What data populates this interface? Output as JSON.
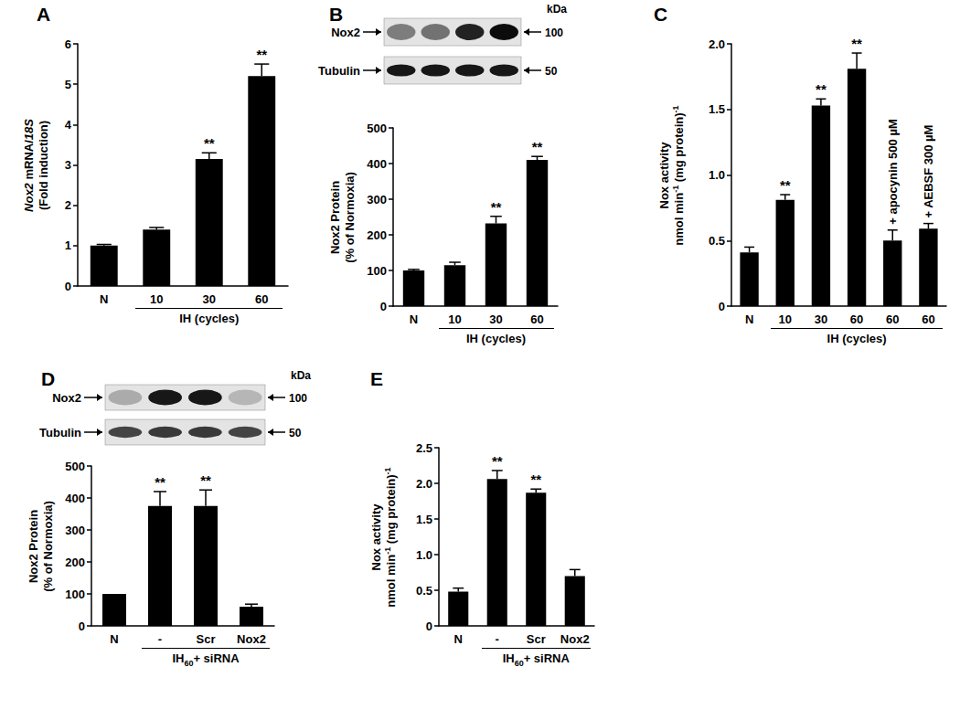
{
  "chart_data": [
    {
      "panel": "A",
      "type": "bar",
      "ylabel": [
        [
          {
            "text": "Nox2",
            "style": "italic"
          },
          {
            "text": " mRNA/"
          },
          {
            "text": "18S",
            "style": "italic"
          }
        ],
        [
          {
            "text": "(Fold induction)"
          }
        ]
      ],
      "categories": [
        "N",
        "10",
        "30",
        "60"
      ],
      "values": [
        1.0,
        1.4,
        3.15,
        5.2
      ],
      "error": [
        0.03,
        0.05,
        0.15,
        0.3
      ],
      "significance": [
        null,
        null,
        "**",
        "**"
      ],
      "x_group": {
        "label": [
          {
            "text": "IH (cycles)"
          }
        ],
        "from": 1,
        "to": 3
      },
      "color": "#000000",
      "ylim": [
        0,
        6
      ],
      "yticks": [
        0,
        1,
        2,
        3,
        4,
        5,
        6
      ],
      "grid": false
    },
    {
      "panel": "B",
      "type": "bar",
      "ylabel": [
        [
          {
            "text": "Nox2 Protein"
          }
        ],
        [
          {
            "text": "(% of Normoxia)"
          }
        ]
      ],
      "categories": [
        "N",
        "10",
        "30",
        "60"
      ],
      "values": [
        100,
        115,
        232,
        410
      ],
      "error": [
        3,
        8,
        20,
        10
      ],
      "significance": [
        null,
        null,
        "**",
        "**"
      ],
      "x_group": {
        "label": [
          {
            "text": "IH (cycles)"
          }
        ],
        "from": 1,
        "to": 3
      },
      "blot": {
        "unit": "kDa",
        "rows": [
          {
            "label": "Nox2",
            "mw": "100",
            "bands": [
              0.45,
              0.5,
              0.85,
              0.95
            ]
          },
          {
            "label": "Tubulin",
            "mw": "50",
            "bands": [
              0.9,
              0.9,
              0.9,
              0.9
            ]
          }
        ]
      },
      "color": "#000000",
      "ylim": [
        0,
        500
      ],
      "yticks": [
        0,
        100,
        200,
        300,
        400,
        500
      ],
      "grid": false
    },
    {
      "panel": "C",
      "type": "bar",
      "ylabel": [
        [
          {
            "text": "Nox activity"
          }
        ],
        [
          {
            "text": "nmol min"
          },
          {
            "text": "-1",
            "style": "sup"
          },
          {
            "text": " (mg protein)"
          },
          {
            "text": "-1",
            "style": "sup"
          }
        ]
      ],
      "categories": [
        "N",
        "10",
        "30",
        "60",
        "60",
        "60"
      ],
      "values": [
        0.41,
        0.81,
        1.53,
        1.81,
        0.5,
        0.59
      ],
      "error": [
        0.04,
        0.04,
        0.05,
        0.12,
        0.08,
        0.04
      ],
      "significance": [
        null,
        "**",
        "**",
        "**",
        null,
        null
      ],
      "annotations": [
        null,
        null,
        null,
        null,
        "+ apocynin 500 µM",
        "+ AEBSF 300 µM"
      ],
      "x_group": {
        "label": [
          {
            "text": "IH (cycles)"
          }
        ],
        "from": 1,
        "to": 5
      },
      "color": "#000000",
      "ylim": [
        0,
        2
      ],
      "yticks": [
        0,
        0.5,
        {
          "value": 1,
          "label": "1.0"
        },
        {
          "value": 1.5,
          "label": "1.5"
        },
        {
          "value": 2,
          "label": "2.0"
        }
      ],
      "grid": false
    },
    {
      "panel": "D",
      "type": "bar",
      "ylabel": [
        [
          {
            "text": "Nox2 Protein"
          }
        ],
        [
          {
            "text": "(% of Normoxia)"
          }
        ]
      ],
      "categories": [
        "N",
        "-",
        "Scr",
        "Nox2"
      ],
      "values": [
        100,
        375,
        375,
        60
      ],
      "error": [
        0,
        45,
        50,
        8
      ],
      "significance": [
        null,
        "**",
        "**",
        null
      ],
      "x_group": {
        "label": [
          {
            "text": "IH"
          },
          {
            "text": "60",
            "style": "sub"
          },
          {
            "text": "+ siRNA"
          }
        ],
        "from": 1,
        "to": 3
      },
      "blot": {
        "unit": "kDa",
        "rows": [
          {
            "label": "Nox2",
            "mw": "100",
            "bands": [
              0.25,
              0.9,
              0.9,
              0.2
            ]
          },
          {
            "label": "Tubulin",
            "mw": "50",
            "bands": [
              0.7,
              0.75,
              0.75,
              0.7
            ]
          }
        ]
      },
      "color": "#000000",
      "ylim": [
        0,
        500
      ],
      "yticks": [
        0,
        100,
        200,
        300,
        400,
        500
      ],
      "grid": false
    },
    {
      "panel": "E",
      "type": "bar",
      "ylabel": [
        [
          {
            "text": "Nox activity"
          }
        ],
        [
          {
            "text": "nmol min"
          },
          {
            "text": "-1",
            "style": "sup"
          },
          {
            "text": " (mg protein)"
          },
          {
            "text": "-1",
            "style": "sup"
          }
        ]
      ],
      "categories": [
        "N",
        "-",
        "Scr",
        "Nox2"
      ],
      "values": [
        0.48,
        2.06,
        1.87,
        0.7
      ],
      "error": [
        0.05,
        0.12,
        0.05,
        0.09
      ],
      "significance": [
        null,
        "**",
        "**",
        null
      ],
      "x_group": {
        "label": [
          {
            "text": "IH"
          },
          {
            "text": "60",
            "style": "sub"
          },
          {
            "text": "+ siRNA"
          }
        ],
        "from": 1,
        "to": 3
      },
      "color": "#000000",
      "ylim": [
        0,
        2.5
      ],
      "yticks": [
        0,
        0.5,
        {
          "value": 1,
          "label": "1.0"
        },
        {
          "value": 1.5,
          "label": "1.5"
        },
        {
          "value": 2,
          "label": "2.0"
        },
        {
          "value": 2.5,
          "label": "2.5"
        }
      ],
      "grid": false
    }
  ]
}
